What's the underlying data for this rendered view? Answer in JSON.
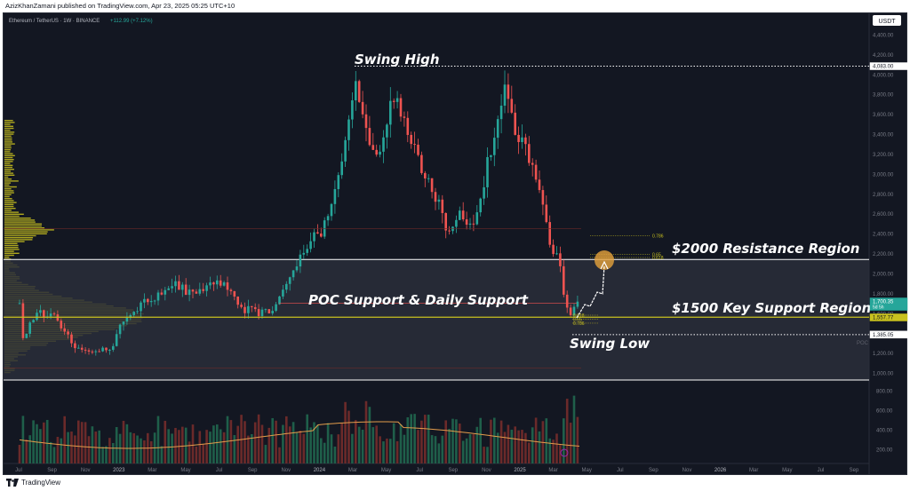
{
  "header": {
    "publisher_line": "AzizKhanZamani published on TradingView.com, Apr 23, 2025 05:25 UTC+10"
  },
  "footer": {
    "brand": "TradingView"
  },
  "symbol": {
    "pair": "Ethereum / TetherUS · 1W · BINANCE",
    "change": "+112.99 (+7.12%)",
    "currency": "USDT"
  },
  "colors": {
    "background": "#131722",
    "up": "#26a69a",
    "down": "#ef5350",
    "profile": "#c9c11f",
    "highlight_fill": "#2a2e39"
  },
  "chart_data": {
    "type": "candlestick",
    "timeframe": "1W",
    "x_labels": [
      "Jul",
      "Sep",
      "Nov",
      "2023",
      "Mar",
      "May",
      "Jul",
      "Sep",
      "Nov",
      "2024",
      "Mar",
      "May",
      "Jul",
      "Sep",
      "Nov",
      "2025",
      "Mar",
      "May",
      "Jul",
      "Sep",
      "Nov",
      "2026",
      "Mar",
      "May",
      "Jul",
      "Sep"
    ],
    "y_ticks": [
      200,
      400,
      600,
      800,
      1000,
      1200,
      1400,
      1600,
      1800,
      2000,
      2200,
      2400,
      2600,
      2800,
      3000,
      3200,
      3400,
      3600,
      3800,
      4000,
      4200,
      4400
    ],
    "y_tick_labels": [
      "200.00",
      "400.00",
      "600.00",
      "800.00",
      "1,000.00",
      "1,200.00",
      "1,400.00",
      "1,600.00",
      "1,800.00",
      "2,000.00",
      "2,200.00",
      "2,400.00",
      "2,600.00",
      "2,800.00",
      "3,000.00",
      "3,200.00",
      "3,400.00",
      "3,600.00",
      "3,800.00",
      "4,000.00",
      "4,200.00",
      "4,400.00"
    ],
    "ylim_price": [
      1000,
      4400
    ],
    "price_labels": [
      {
        "value": 4083.0,
        "text": "4,083.00",
        "style": "white"
      },
      {
        "value": 1700.35,
        "text": "1,700.35",
        "sub": "5d 5h",
        "style": "green"
      },
      {
        "value": 1557.77,
        "text": "1,557.77",
        "style": "yellow"
      },
      {
        "value": 1385.05,
        "text": "1,385.05",
        "style": "white"
      }
    ],
    "levels": {
      "swing_high": 4083,
      "swing_low": 1385,
      "resistance_zone": [
        2140,
        900
      ],
      "poc": 1560
    },
    "fib_labels_upper": [
      "0.786",
      "0.65",
      "0.618"
    ],
    "fib_labels_lower": [
      "0.618",
      "0.65",
      "0.786"
    ],
    "poc_tag": "POC",
    "annotations": [
      {
        "text": "Swing High"
      },
      {
        "text": "$2000 Resistance Region"
      },
      {
        "text": "POC Support & Daily Support"
      },
      {
        "text": "$1500 Key Support Region"
      },
      {
        "text": "Swing Low"
      }
    ],
    "volume_ticks": [
      "800.00",
      "600.00",
      "400.00",
      "200.00"
    ]
  }
}
